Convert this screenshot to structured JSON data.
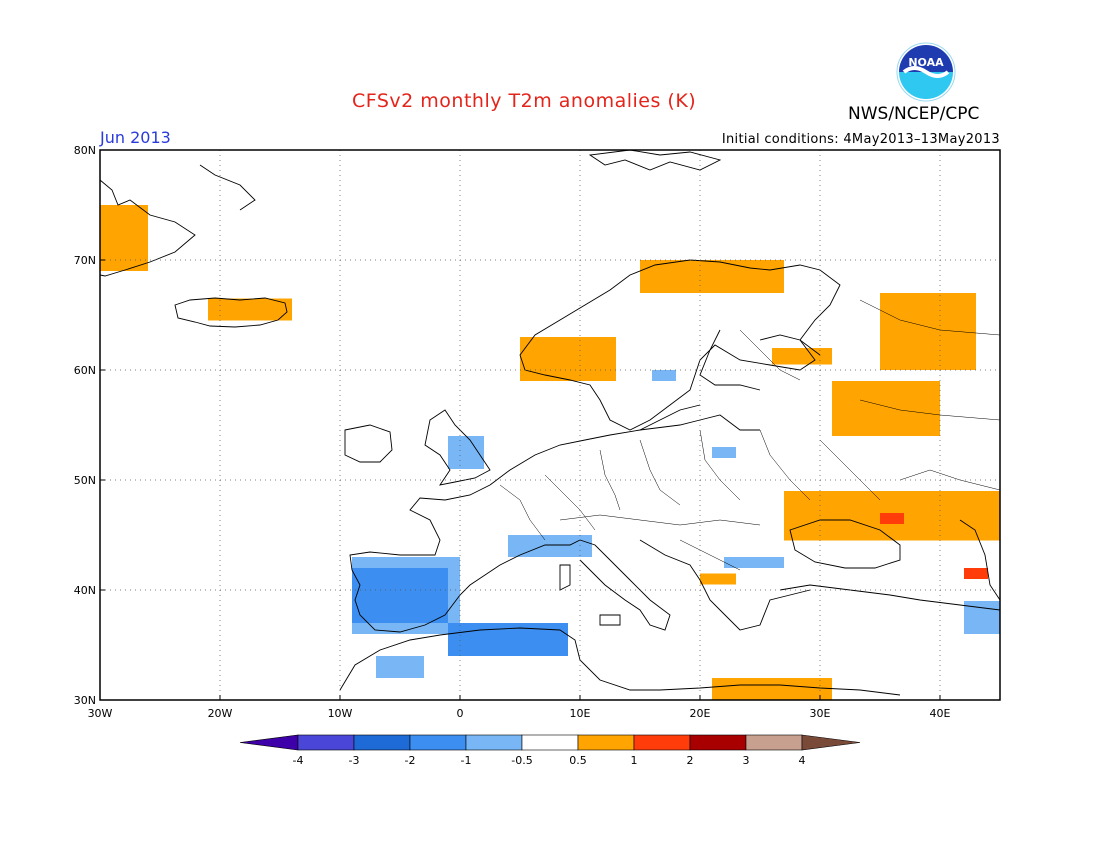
{
  "header": {
    "title": "CFSv2 monthly T2m anomalies (K)",
    "agency": "NWS/NCEP/CPC",
    "month": "Jun 2013",
    "initial_conditions": "Initial conditions: 4May2013–13May2013",
    "logo_text": "NOAA"
  },
  "map": {
    "lon_range": [
      -30,
      45
    ],
    "lat_range": [
      30,
      80
    ],
    "lat_labels": [
      "30N",
      "40N",
      "50N",
      "60N",
      "70N",
      "80N"
    ],
    "lon_labels": [
      "30W",
      "20W",
      "10W",
      "0",
      "10E",
      "20E",
      "30E",
      "40E"
    ],
    "grid_lines": "dotted",
    "anomaly_regions": [
      {
        "name": "greenland",
        "class": "0.5 to 1",
        "lon": [
          -30,
          -26
        ],
        "lat": [
          69,
          75
        ]
      },
      {
        "name": "iceland",
        "class": "0.5 to 1",
        "lon": [
          -21,
          -14
        ],
        "lat": [
          64.5,
          66.5
        ]
      },
      {
        "name": "norway-west",
        "class": "0.5 to 1",
        "lon": [
          5,
          13
        ],
        "lat": [
          59,
          63
        ]
      },
      {
        "name": "scandinavia-north",
        "class": "0.5 to 1",
        "lon": [
          15,
          27
        ],
        "lat": [
          67,
          70
        ]
      },
      {
        "name": "finland",
        "class": "0.5 to 1",
        "lon": [
          26,
          31
        ],
        "lat": [
          60.5,
          62
        ]
      },
      {
        "name": "russia-north",
        "class": "0.5 to 1",
        "lon": [
          35,
          43
        ],
        "lat": [
          60,
          67
        ]
      },
      {
        "name": "russia-central",
        "class": "0.5 to 1",
        "lon": [
          31,
          40
        ],
        "lat": [
          54,
          59
        ]
      },
      {
        "name": "ukraine-black-sea",
        "class": "0.5 to 1",
        "lon": [
          27,
          45
        ],
        "lat": [
          44.5,
          49
        ]
      },
      {
        "name": "caucasus",
        "class": "1 to 2",
        "lon": [
          35,
          37
        ],
        "lat": [
          46,
          47
        ]
      },
      {
        "name": "caspian",
        "class": "1 to 2",
        "lon": [
          42,
          44
        ],
        "lat": [
          41,
          42
        ]
      },
      {
        "name": "greece",
        "class": "0.5 to 1",
        "lon": [
          20,
          23
        ],
        "lat": [
          40.5,
          41.5
        ]
      },
      {
        "name": "libya-egypt",
        "class": "0.5 to 1",
        "lon": [
          21,
          31
        ],
        "lat": [
          30,
          32
        ]
      },
      {
        "name": "iberia",
        "class": "-2 to -1",
        "lon": [
          -9,
          -1
        ],
        "lat": [
          37,
          42
        ]
      },
      {
        "name": "iberia-outer",
        "class": "-1 to -0.5",
        "lon": [
          -9,
          0
        ],
        "lat": [
          36,
          43
        ]
      },
      {
        "name": "algeria",
        "class": "-2 to -1",
        "lon": [
          -1,
          9
        ],
        "lat": [
          34,
          37
        ]
      },
      {
        "name": "morocco",
        "class": "-1 to -0.5",
        "lon": [
          -7,
          -3
        ],
        "lat": [
          32,
          34
        ]
      },
      {
        "name": "alps",
        "class": "-1 to -0.5",
        "lon": [
          4,
          11
        ],
        "lat": [
          43,
          45
        ]
      },
      {
        "name": "balkans",
        "class": "-1 to -0.5",
        "lon": [
          22,
          27
        ],
        "lat": [
          42,
          43
        ]
      },
      {
        "name": "uk",
        "class": "-1 to -0.5",
        "lon": [
          -1,
          2
        ],
        "lat": [
          51,
          54
        ]
      },
      {
        "name": "sweden-south",
        "class": "-1 to -0.5",
        "lon": [
          16,
          18
        ],
        "lat": [
          59,
          60
        ]
      },
      {
        "name": "baltic",
        "class": "-1 to -0.5",
        "lon": [
          21,
          23
        ],
        "lat": [
          52,
          53
        ]
      },
      {
        "name": "turkey-east",
        "class": "-1 to -0.5",
        "lon": [
          42,
          45
        ],
        "lat": [
          36,
          39
        ]
      }
    ]
  },
  "colorbar": {
    "labels": [
      "-4",
      "-3",
      "-2",
      "-1",
      "-0.5",
      "0.5",
      "1",
      "2",
      "3",
      "4"
    ],
    "colors": [
      "#3e00a8",
      "#4a47d8",
      "#1e6ad6",
      "#3c8ef0",
      "#78b6f5",
      "#ffffff",
      "#ffa400",
      "#ff3c0a",
      "#a80000",
      "#c8a090",
      "#7a4a38"
    ]
  },
  "colors": {
    "title": "#e4241b",
    "month": "#2a3adb",
    "warm1": "#ffa400",
    "warm2": "#ff3c0a",
    "cool1": "#78b6f5",
    "cool2": "#3c8ef0",
    "cool3": "#1e6ad6"
  }
}
